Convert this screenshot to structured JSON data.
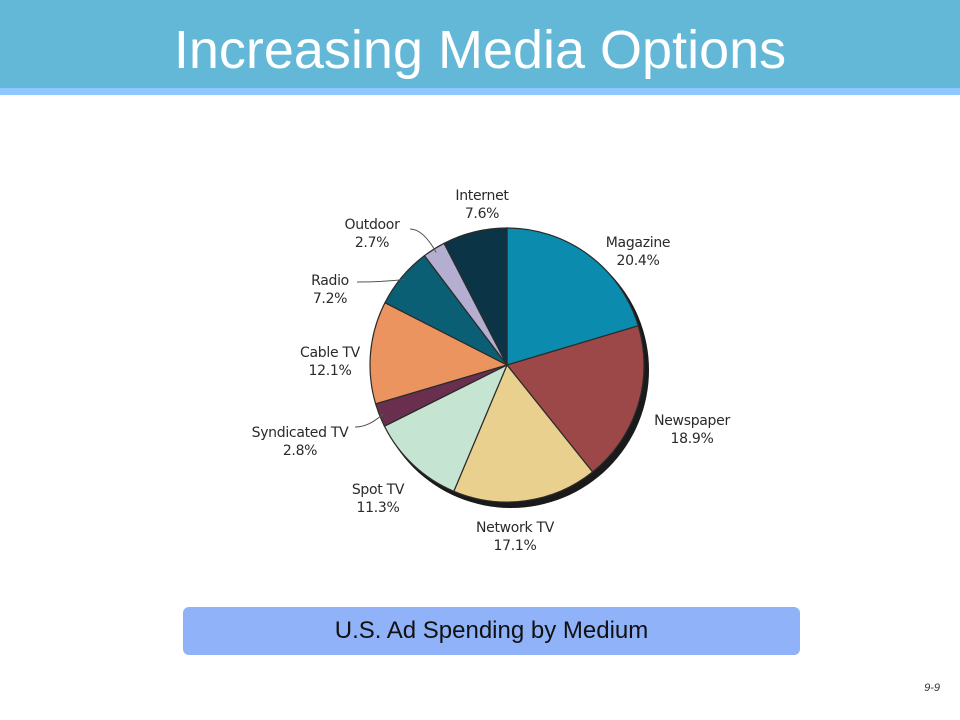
{
  "slide": {
    "title": "Increasing Media Options",
    "caption": "U.S. Ad Spending by Medium",
    "page_number": "9-9"
  },
  "chart_data": {
    "type": "pie",
    "title": "",
    "slices": [
      {
        "label": "Magazine",
        "value": 20.4,
        "value_label": "20.4%",
        "color": "#0b8bad"
      },
      {
        "label": "Newspaper",
        "value": 18.9,
        "value_label": "18.9%",
        "color": "#9c4848"
      },
      {
        "label": "Network TV",
        "value": 17.1,
        "value_label": "17.1%",
        "color": "#ead08f"
      },
      {
        "label": "Spot TV",
        "value": 11.3,
        "value_label": "11.3%",
        "color": "#c6e4d2"
      },
      {
        "label": "Syndicated TV",
        "value": 2.8,
        "value_label": "2.8%",
        "color": "#6a2e4e"
      },
      {
        "label": "Cable TV",
        "value": 12.1,
        "value_label": "12.1%",
        "color": "#ec9460"
      },
      {
        "label": "Radio",
        "value": 7.2,
        "value_label": "7.2%",
        "color": "#0a5f74"
      },
      {
        "label": "Outdoor",
        "value": 2.7,
        "value_label": "2.7%",
        "color": "#b4aed0"
      },
      {
        "label": "Internet",
        "value": 7.6,
        "value_label": "7.6%",
        "color": "#0b3447"
      }
    ]
  }
}
